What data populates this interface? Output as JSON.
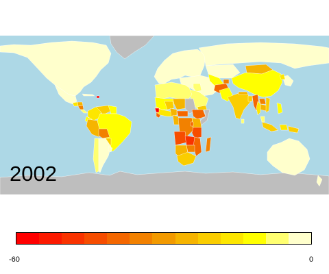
{
  "map": {
    "year": "2002",
    "ocean_color": "#add8e6",
    "no_data_color": "#bebebe",
    "border_color": "#ffffff"
  },
  "legend": {
    "min_label": "-60",
    "max_label": "0",
    "colors": [
      "#ff0000",
      "#fc1a00",
      "#f93300",
      "#f64d00",
      "#f46700",
      "#f28100",
      "#f29a00",
      "#f6b400",
      "#facd00",
      "#fde600",
      "#ffff00",
      "#ffff70",
      "#ffffcc"
    ]
  }
}
